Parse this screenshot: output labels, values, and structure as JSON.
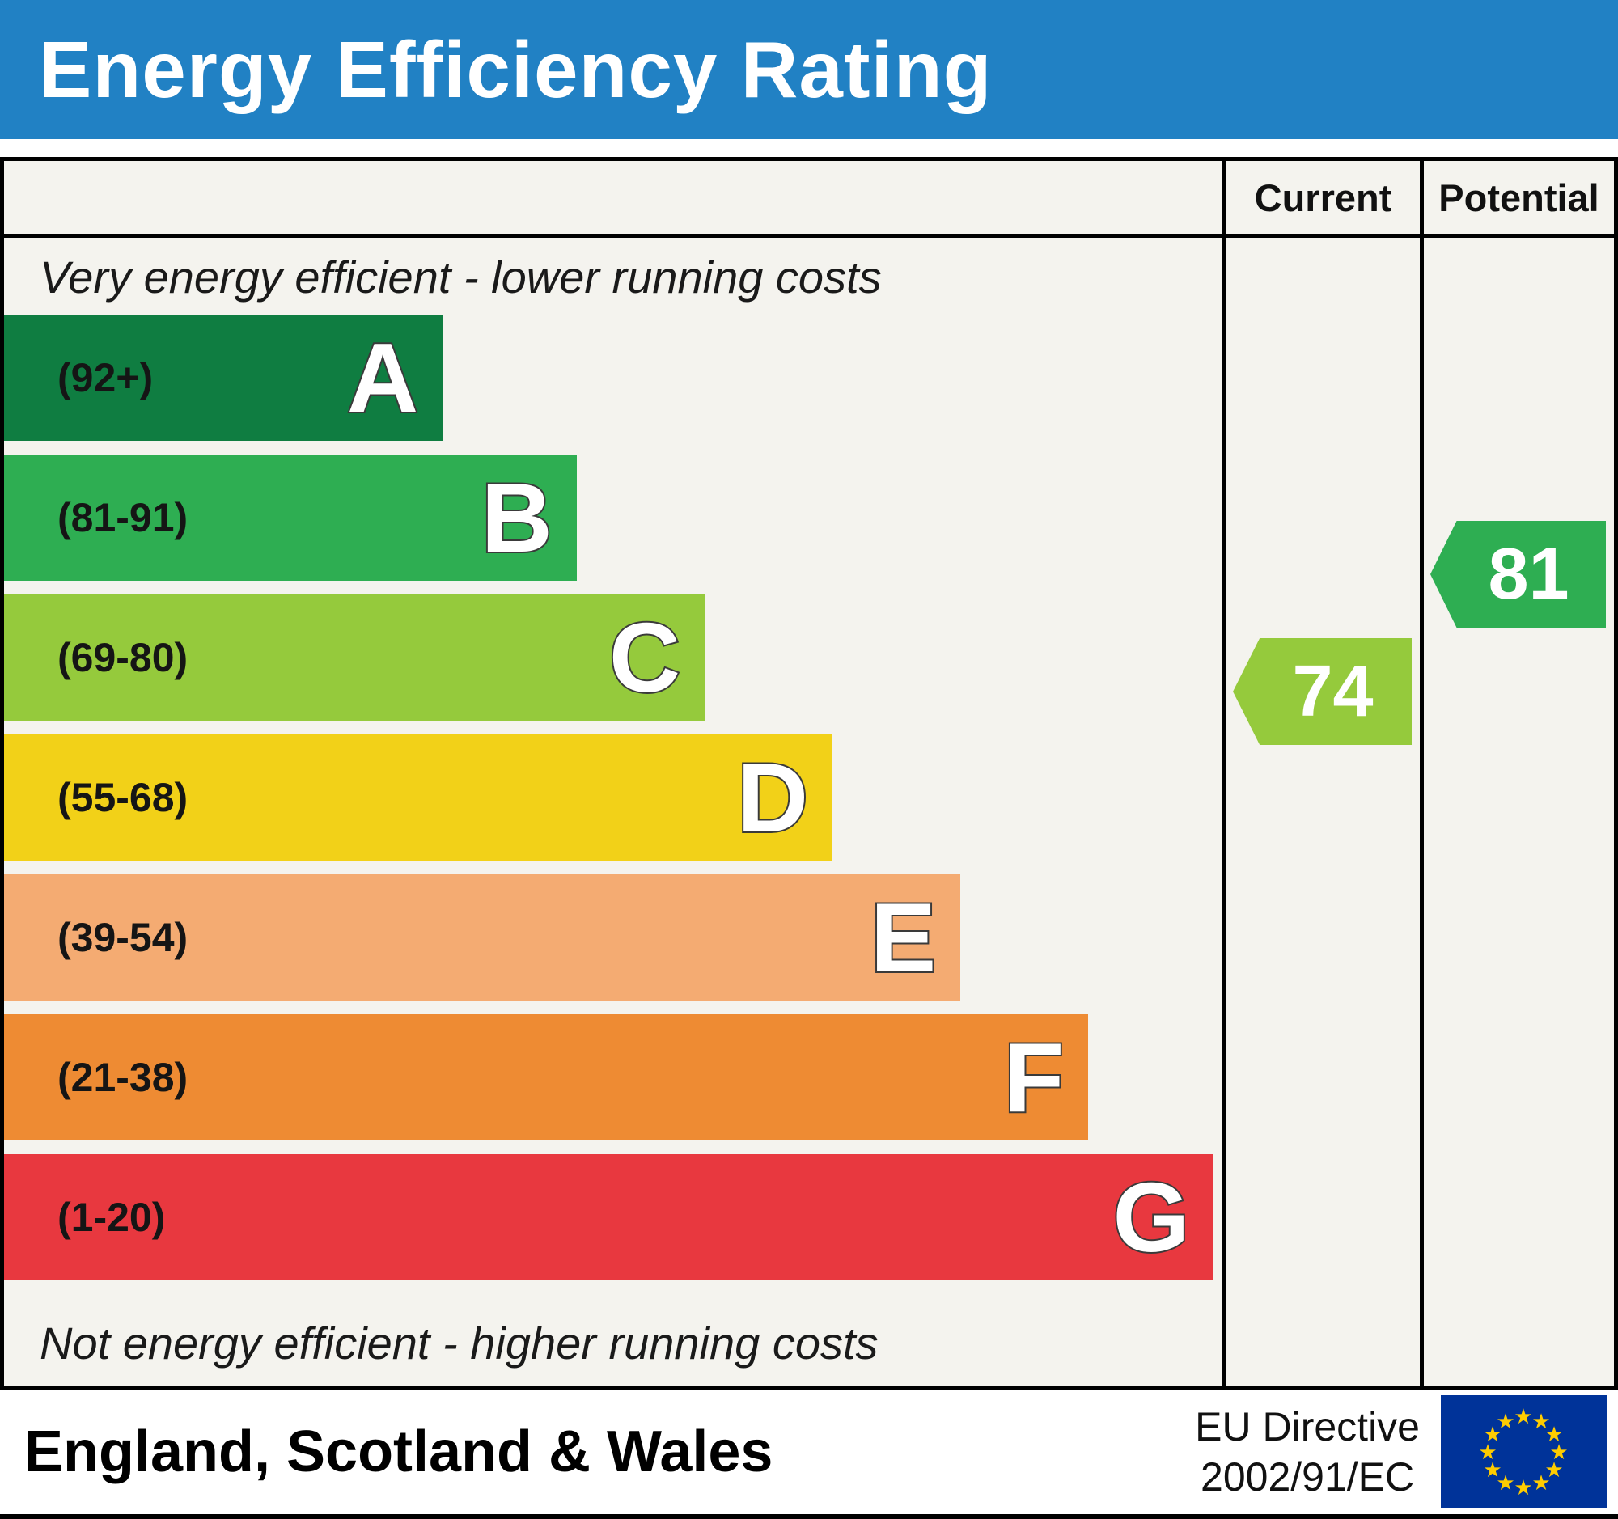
{
  "title": "Energy Efficiency Rating",
  "header": {
    "current_label": "Current",
    "potential_label": "Potential"
  },
  "notes": {
    "top": "Very energy efficient - lower running costs",
    "bottom": "Not energy efficient - higher running costs"
  },
  "footer": {
    "region": "England, Scotland & Wales",
    "directive_line1": "EU Directive",
    "directive_line2": "2002/91/EC",
    "flag_icon": "eu-flag"
  },
  "colors": {
    "header_bar": "#2181c4",
    "chart_background": "#f4f3ee",
    "border": "#000000"
  },
  "chart_data": {
    "type": "bar",
    "title": "Energy Efficiency Rating",
    "bands": [
      {
        "letter": "A",
        "range": "(92+)",
        "color": "#0f7d41",
        "width_pct": 36
      },
      {
        "letter": "B",
        "range": "(81-91)",
        "color": "#2eae52",
        "width_pct": 47
      },
      {
        "letter": "C",
        "range": "(69-80)",
        "color": "#95ca3c",
        "width_pct": 57.5
      },
      {
        "letter": "D",
        "range": "(55-68)",
        "color": "#f2d118",
        "width_pct": 68
      },
      {
        "letter": "E",
        "range": "(39-54)",
        "color": "#f4ab72",
        "width_pct": 78.5
      },
      {
        "letter": "F",
        "range": "(21-38)",
        "color": "#ee8b33",
        "width_pct": 89
      },
      {
        "letter": "G",
        "range": "(1-20)",
        "color": "#e8383f",
        "width_pct": 99.3
      }
    ],
    "current": {
      "value": 74,
      "band": "C",
      "color": "#95ca3c"
    },
    "potential": {
      "value": 81,
      "band": "B",
      "color": "#2eae52"
    }
  }
}
